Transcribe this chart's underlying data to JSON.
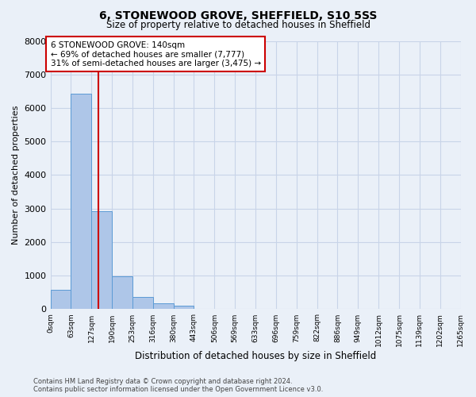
{
  "title_line1": "6, STONEWOOD GROVE, SHEFFIELD, S10 5SS",
  "title_line2": "Size of property relative to detached houses in Sheffield",
  "xlabel": "Distribution of detached houses by size in Sheffield",
  "ylabel": "Number of detached properties",
  "bar_values": [
    570,
    6430,
    2920,
    990,
    360,
    170,
    100,
    0,
    0,
    0,
    0,
    0,
    0,
    0,
    0,
    0,
    0,
    0,
    0,
    0
  ],
  "bin_labels": [
    "0sqm",
    "63sqm",
    "127sqm",
    "190sqm",
    "253sqm",
    "316sqm",
    "380sqm",
    "443sqm",
    "506sqm",
    "569sqm",
    "633sqm",
    "696sqm",
    "759sqm",
    "822sqm",
    "886sqm",
    "949sqm",
    "1012sqm",
    "1075sqm",
    "1139sqm",
    "1202sqm",
    "1265sqm"
  ],
  "bar_color": "#aec6e8",
  "bar_edge_color": "#5b9bd5",
  "vline_color": "#cc0000",
  "vline_x_data": 1.85,
  "annotation_text": "6 STONEWOOD GROVE: 140sqm\n← 69% of detached houses are smaller (7,777)\n31% of semi-detached houses are larger (3,475) →",
  "annotation_box_facecolor": "#ffffff",
  "annotation_box_edgecolor": "#cc0000",
  "ylim": [
    0,
    8000
  ],
  "yticks": [
    0,
    1000,
    2000,
    3000,
    4000,
    5000,
    6000,
    7000,
    8000
  ],
  "grid_color": "#c8d4e8",
  "background_color": "#eaf0f8",
  "footnote_line1": "Contains HM Land Registry data © Crown copyright and database right 2024.",
  "footnote_line2": "Contains public sector information licensed under the Open Government Licence v3.0."
}
